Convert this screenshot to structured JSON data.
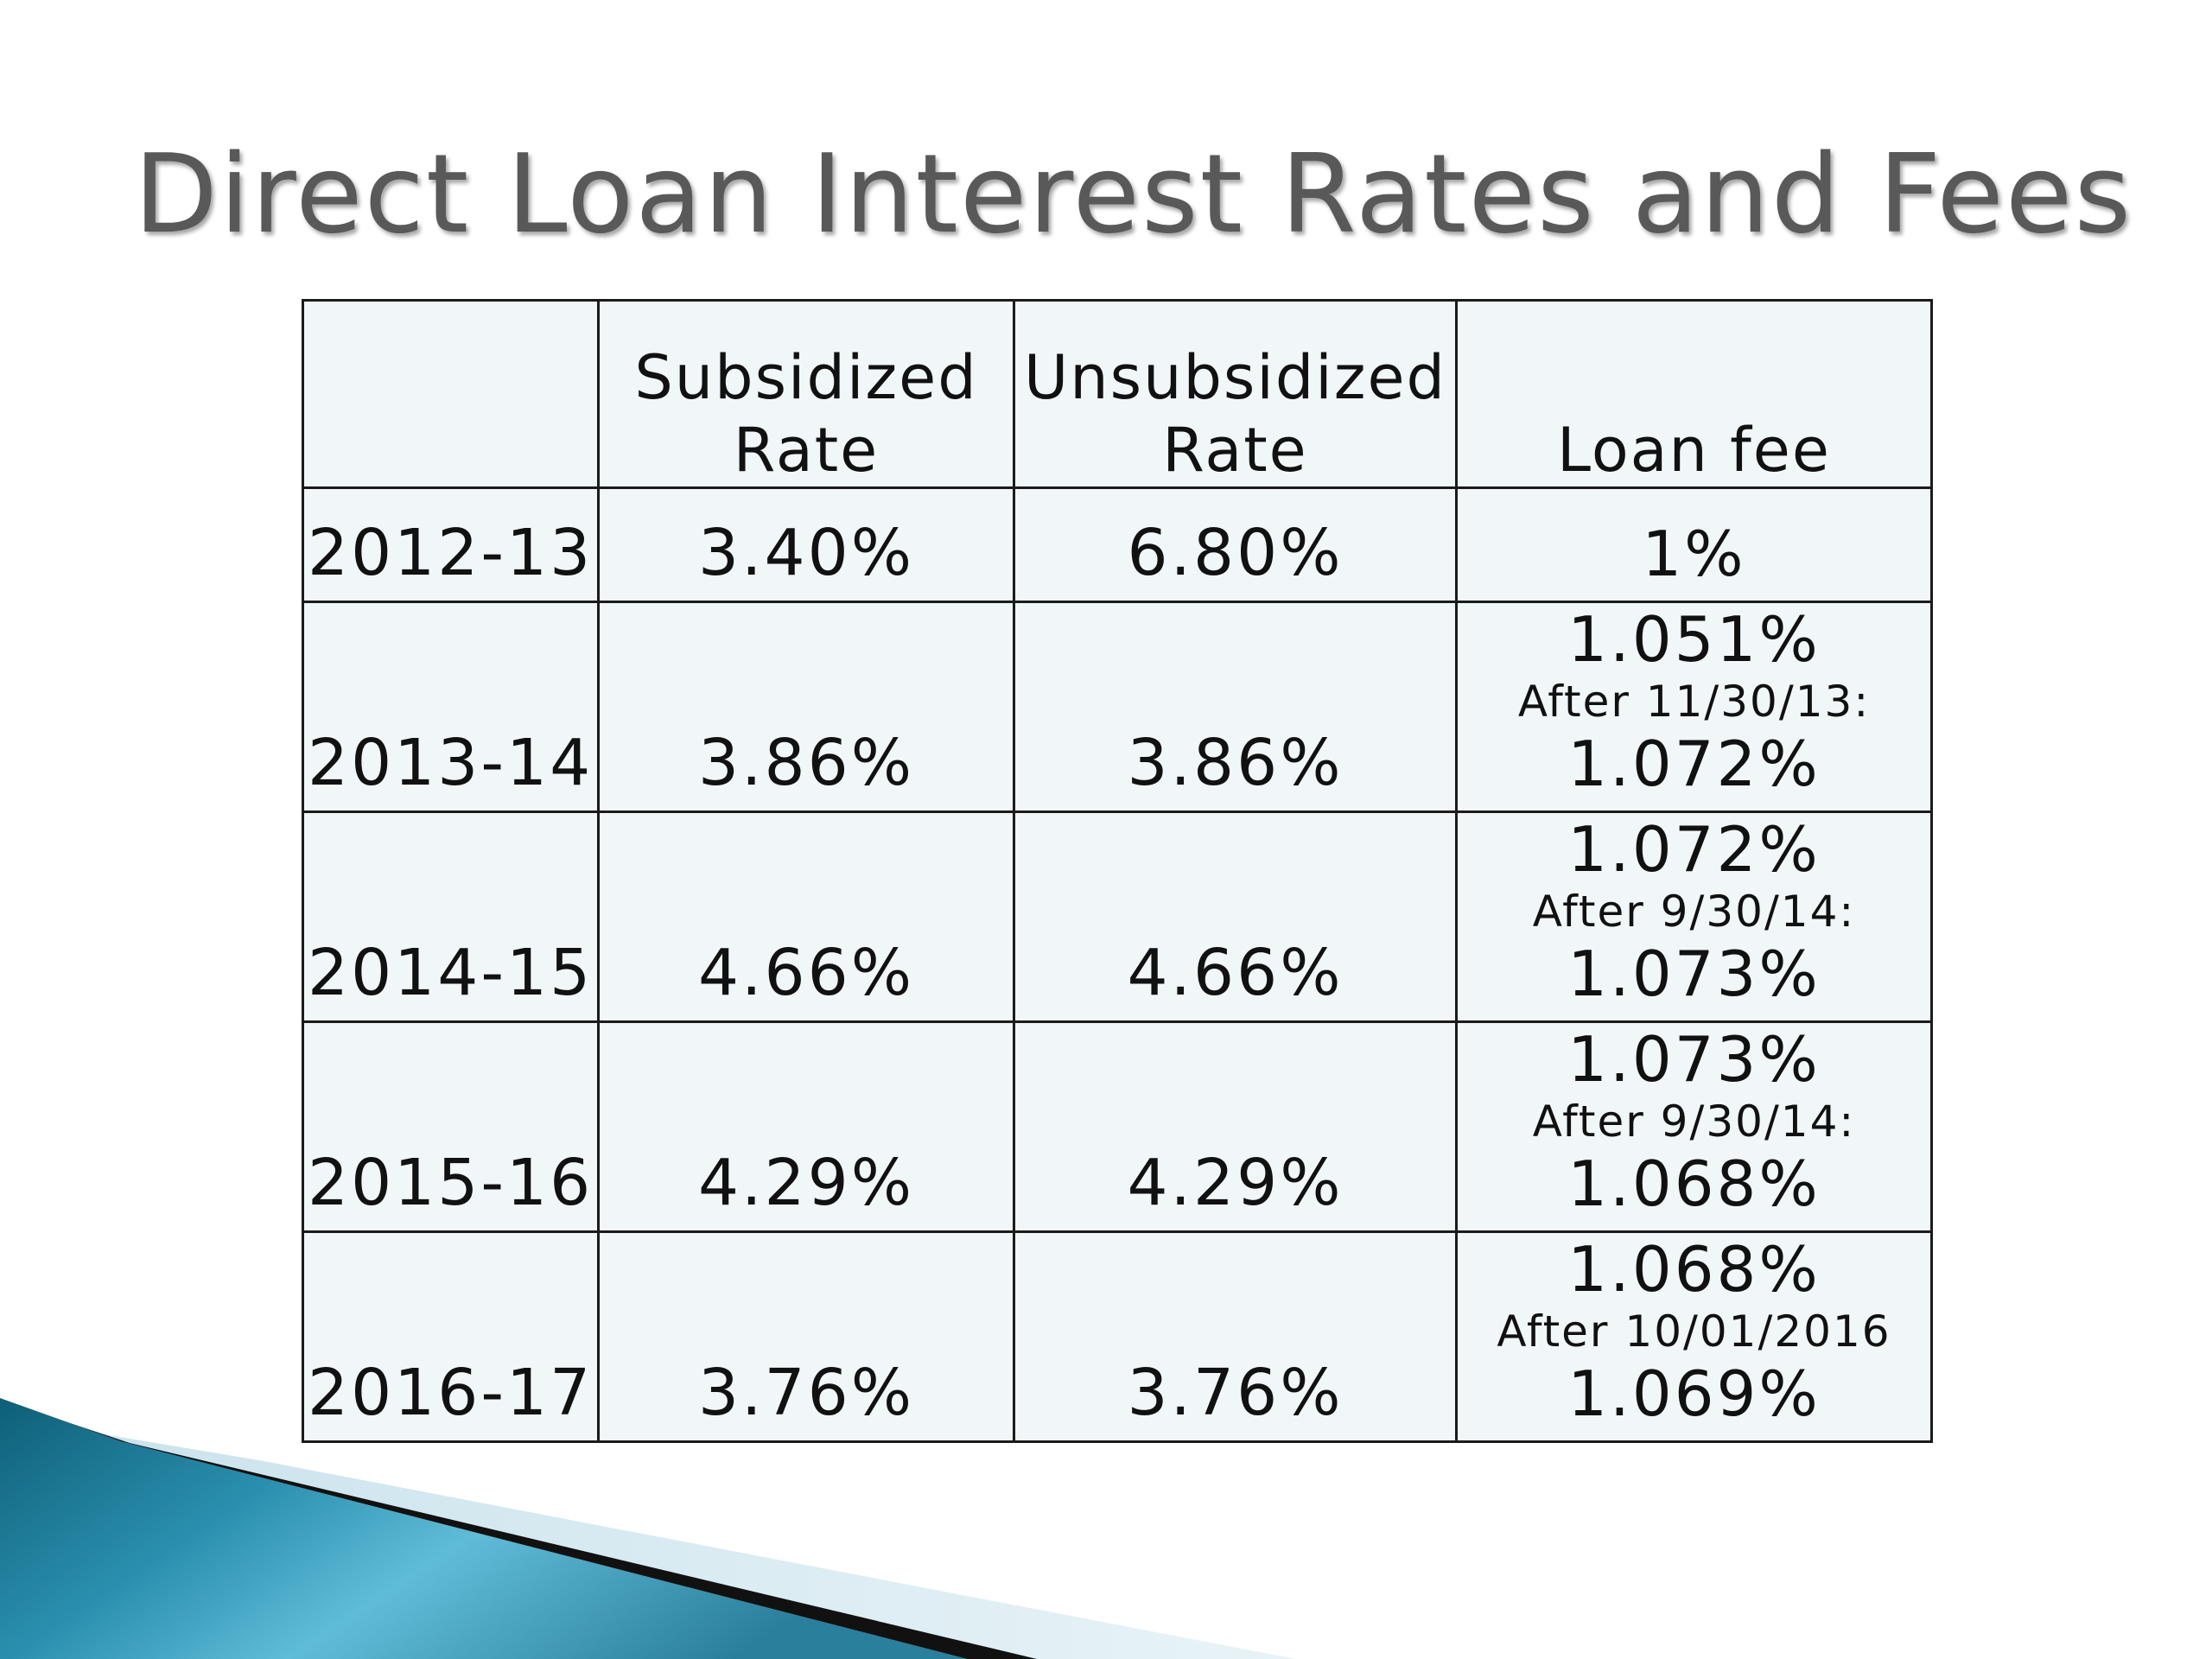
{
  "slide": {
    "title": "Direct Loan Interest Rates and Fees"
  },
  "table": {
    "headers": {
      "year": "",
      "subsidized_line1": "Subsidized",
      "subsidized_line2": "Rate",
      "unsubsidized_line1": "Unsubsidized",
      "unsubsidized_line2": "Rate",
      "loan_fee": "Loan fee"
    },
    "rows": [
      {
        "year": "2012-13",
        "subsidized": "3.40%",
        "unsubsidized": "6.80%",
        "fee": "1%"
      },
      {
        "year": "2013-14",
        "subsidized": "3.86%",
        "unsubsidized": "3.86%",
        "fee_before": "1.051%",
        "fee_note": "After 11/30/13:",
        "fee_after": "1.072%"
      },
      {
        "year": "2014-15",
        "subsidized": "4.66%",
        "unsubsidized": "4.66%",
        "fee_before": "1.072%",
        "fee_note": "After 9/30/14:",
        "fee_after": "1.073%"
      },
      {
        "year": "2015-16",
        "subsidized": "4.29%",
        "unsubsidized": "4.29%",
        "fee_before": "1.073%",
        "fee_note": "After 9/30/14:",
        "fee_after": "1.068%"
      },
      {
        "year": "2016-17",
        "subsidized": "3.76%",
        "unsubsidized": "3.76%",
        "fee_before": "1.068%",
        "fee_note": "After 10/01/2016",
        "fee_after": "1.069%"
      }
    ]
  },
  "colors": {
    "title": "#595959",
    "table_bg": "#f1f6f9",
    "border": "#1b1b1b",
    "accent_teal": "#1d7f9c",
    "accent_light": "#d7e9f0"
  }
}
